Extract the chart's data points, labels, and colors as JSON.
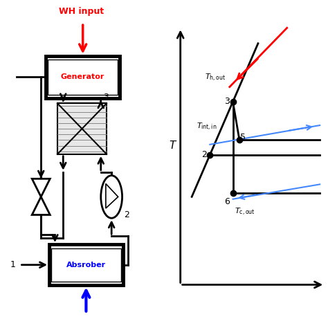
{
  "bg_color": "#ffffff",
  "wh_input_text": "WH input",
  "generator_text": "Generator",
  "generator_color": "#ff0000",
  "absorber_text": "Absrober",
  "absorber_color": "#0000ff",
  "label1": "1",
  "label2": "2",
  "label3": "3",
  "T_label": "T",
  "fig_w": 4.74,
  "fig_h": 4.74,
  "dpi": 100
}
